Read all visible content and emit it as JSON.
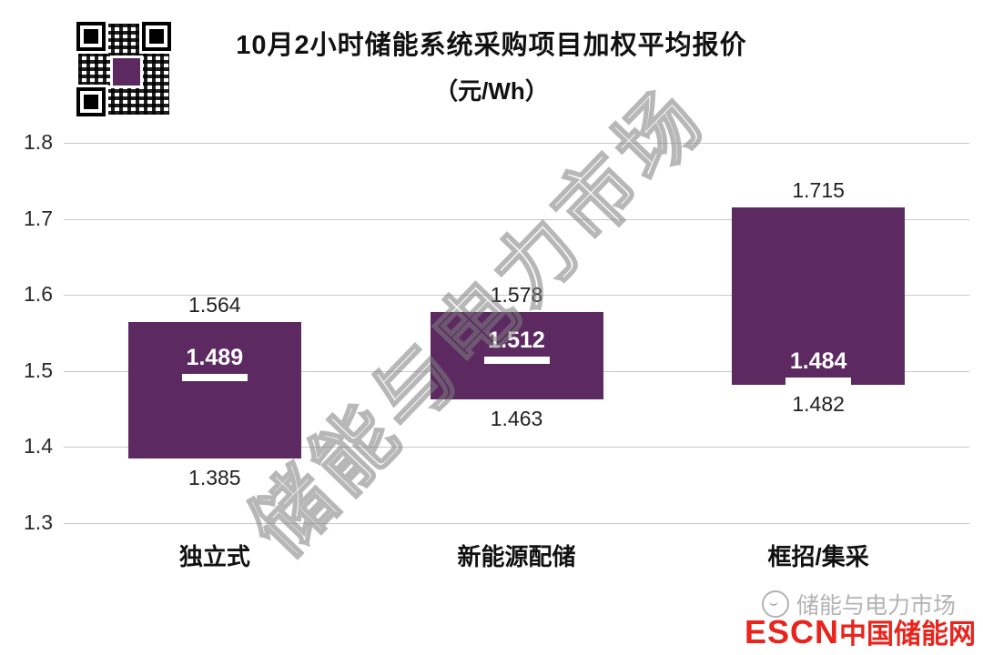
{
  "title": "10月2小时储能系统采购项目加权平均报价",
  "subtitle": "（元/Wh）",
  "watermark": "储能与电力市场",
  "footer": {
    "brand_gray": "储能与电力市场",
    "brand_red_1": "ESCN",
    "brand_red_2": "中国储能网"
  },
  "colors": {
    "bar": "#5c2a61",
    "grid": "#c9c9c9",
    "escn_red": "#e8241c"
  },
  "chart_data": {
    "type": "bar",
    "subtype": "floating-range-bar",
    "title": "10月2小时储能系统采购项目加权平均报价",
    "unit_label": "（元/Wh）",
    "categories": [
      "独立式",
      "新能源配储",
      "框招/集采"
    ],
    "series": [
      {
        "name": "min",
        "values": [
          1.385,
          1.463,
          1.482
        ]
      },
      {
        "name": "max",
        "values": [
          1.564,
          1.578,
          1.715
        ]
      },
      {
        "name": "weighted_avg",
        "values": [
          1.489,
          1.512,
          1.484
        ]
      }
    ],
    "ylim": [
      1.3,
      1.8
    ],
    "yticks": [
      1.8,
      1.7,
      1.6,
      1.5,
      1.4,
      1.3
    ],
    "grid": true,
    "legend": "none"
  }
}
